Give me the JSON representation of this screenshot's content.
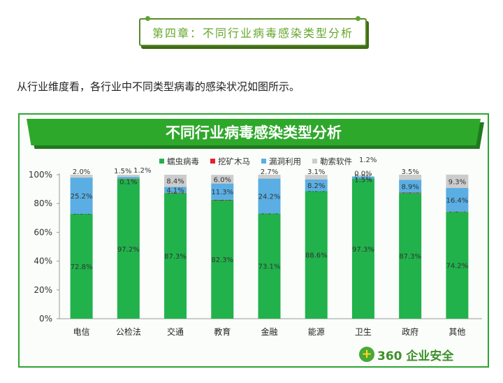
{
  "chapter": {
    "title": "第四章：不同行业病毒感染类型分析"
  },
  "intro": "从行业维度看，各行业中不同类型病毒的感染状况如图所示。",
  "logo": {
    "mark": "+",
    "text": "360 企业安全"
  },
  "chart_data": {
    "type": "bar",
    "stacked": true,
    "title": "不同行业病毒感染类型分析",
    "categories": [
      "电信",
      "公检法",
      "交通",
      "教育",
      "金融",
      "能源",
      "卫生",
      "政府",
      "其他"
    ],
    "series": [
      {
        "name": "蠕虫病毒",
        "color": "#21b24b",
        "values": [
          72.8,
          97.2,
          87.3,
          82.3,
          73.1,
          88.6,
          97.3,
          87.3,
          74.2
        ]
      },
      {
        "name": "挖矿木马",
        "color": "#e8202a",
        "values": [
          0.0,
          0.1,
          0.2,
          0.3,
          0.0,
          0.0,
          0.0,
          0.3,
          0.2
        ]
      },
      {
        "name": "漏洞利用",
        "color": "#5aaee3",
        "values": [
          25.2,
          1.2,
          4.1,
          11.3,
          24.2,
          8.2,
          1.5,
          8.9,
          16.4
        ]
      },
      {
        "name": "勒索软件",
        "color": "#cccccc",
        "values": [
          2.0,
          1.5,
          8.4,
          6.0,
          2.7,
          3.1,
          0.0,
          3.5,
          9.3
        ]
      }
    ],
    "legend_note": "1.2%",
    "yticks": [
      "0%",
      "20%",
      "40%",
      "60%",
      "80%",
      "100%"
    ],
    "ylim": [
      0,
      100
    ],
    "legend_position": "top"
  }
}
